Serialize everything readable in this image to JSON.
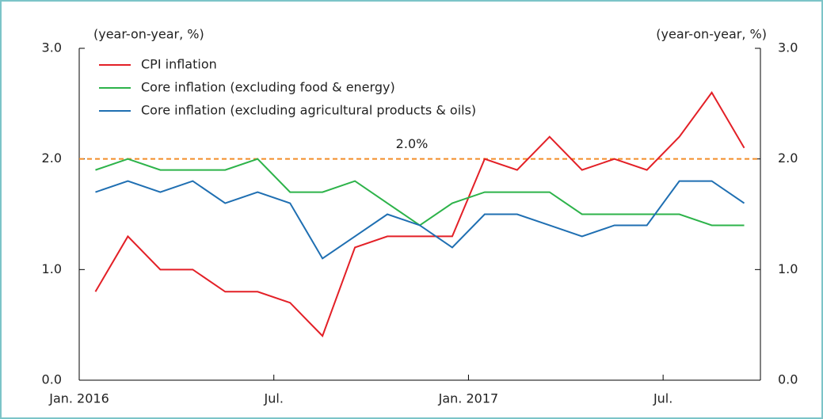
{
  "chart_data": {
    "type": "line",
    "ylabel": "(year-on-year, %)",
    "y2label": "(year-on-year, %)",
    "categories": [
      "Jan. 2016",
      null,
      null,
      null,
      null,
      null,
      "Jul.",
      null,
      null,
      null,
      null,
      null,
      "Jan. 2017",
      null,
      null,
      null,
      null,
      null,
      "Jul.",
      null,
      null
    ],
    "series": [
      {
        "name": "CPI inflation",
        "color": "#e32027",
        "values": [
          0.8,
          1.3,
          1.0,
          1.0,
          0.8,
          0.8,
          0.7,
          0.4,
          1.2,
          1.3,
          1.3,
          1.3,
          2.0,
          1.9,
          2.2,
          1.9,
          2.0,
          1.9,
          2.2,
          2.6,
          2.1
        ]
      },
      {
        "name": "Core inflation (excluding food & energy)",
        "color": "#2db34a",
        "values": [
          1.9,
          2.0,
          1.9,
          1.9,
          1.9,
          2.0,
          1.7,
          1.7,
          1.8,
          1.6,
          1.4,
          1.6,
          1.7,
          1.7,
          1.7,
          1.5,
          1.5,
          1.5,
          1.5,
          1.4,
          1.4
        ]
      },
      {
        "name": "Core inflation (excluding agricultural products & oils)",
        "color": "#1f6fb2",
        "values": [
          1.7,
          1.8,
          1.7,
          1.8,
          1.6,
          1.7,
          1.6,
          1.1,
          1.3,
          1.5,
          1.4,
          1.2,
          1.5,
          1.5,
          1.4,
          1.3,
          1.4,
          1.4,
          1.8,
          1.8,
          1.6
        ]
      }
    ],
    "reference_line": {
      "value": 2.0,
      "label": "2.0%",
      "color": "#f28c28"
    },
    "ylim": [
      0,
      3
    ],
    "yticks": [
      {
        "value": 0,
        "label": "0.0"
      },
      {
        "value": 1,
        "label": "1.0"
      },
      {
        "value": 2,
        "label": "2.0"
      },
      {
        "value": 3,
        "label": "3.0"
      }
    ],
    "y2lim": [
      0,
      3
    ],
    "y2ticks": [
      {
        "value": 0,
        "label": "0.0"
      },
      {
        "value": 1,
        "label": "1.0"
      },
      {
        "value": 2,
        "label": "2.0"
      },
      {
        "value": 3,
        "label": "3.0"
      }
    ],
    "legend": "upper left"
  }
}
